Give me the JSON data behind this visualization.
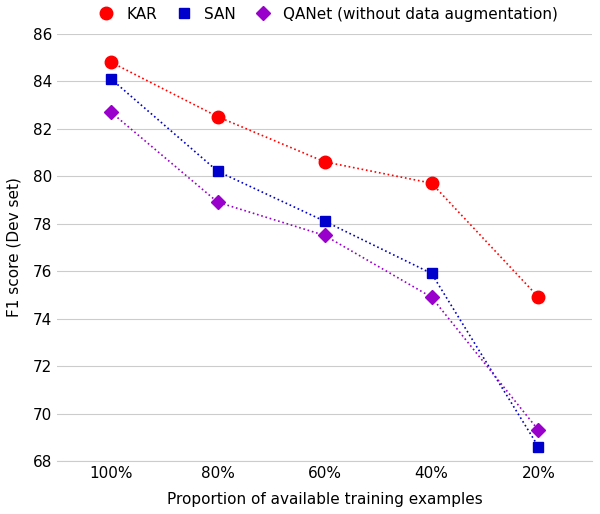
{
  "x_labels": [
    "100%",
    "80%",
    "60%",
    "40%",
    "20%"
  ],
  "x_values": [
    100,
    80,
    60,
    40,
    20
  ],
  "KAR": [
    84.8,
    82.5,
    80.6,
    79.7,
    74.9
  ],
  "SAN": [
    84.1,
    80.2,
    78.1,
    75.9,
    68.6
  ],
  "QANet": [
    82.7,
    78.9,
    77.5,
    74.9,
    69.3
  ],
  "KAR_color": "#ff0000",
  "SAN_color": "#0000cc",
  "QANet_color": "#9900cc",
  "xlabel": "Proportion of available training examples",
  "ylabel": "F1 score (Dev set)",
  "ylim": [
    68,
    86
  ],
  "yticks": [
    68,
    70,
    72,
    74,
    76,
    78,
    80,
    82,
    84,
    86
  ],
  "legend_labels": [
    "KAR",
    "SAN",
    "QANet (without data augmentation)"
  ],
  "background_color": "#ffffff",
  "grid_color": "#cccccc"
}
